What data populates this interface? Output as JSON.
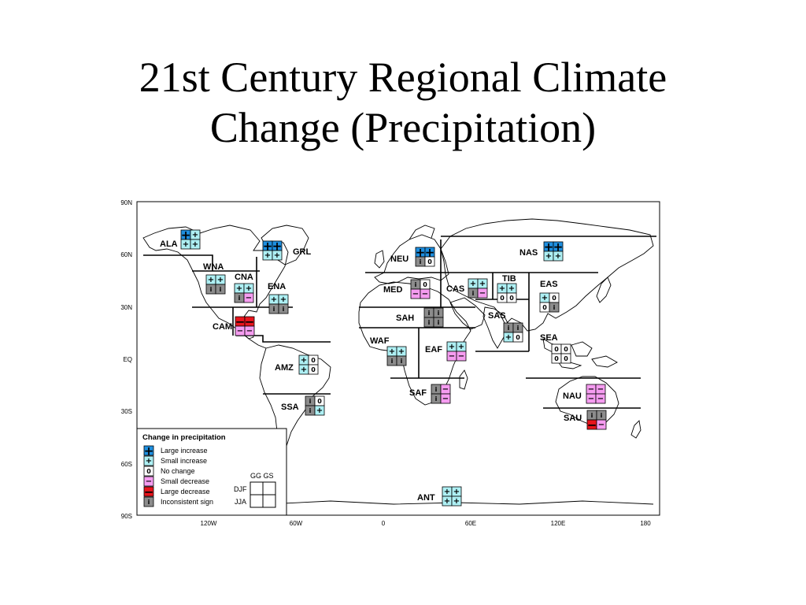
{
  "title": {
    "line1": "21st Century Regional Climate",
    "line2": "Change (Precipitation)"
  },
  "axes": {
    "lat": [
      "90N",
      "60N",
      "30N",
      "EQ",
      "30S",
      "60S",
      "90S"
    ],
    "lon": [
      "120W",
      "60W",
      "0",
      "60E",
      "120E",
      "180"
    ]
  },
  "colors": {
    "large_increase": "#1e8fe0",
    "small_increase": "#aef0f4",
    "no_change": "#ffffff",
    "small_decrease": "#f59cf0",
    "large_decrease": "#e8141c",
    "inconsistent": "#8c8c8c"
  },
  "legend": {
    "title": "Change in precipitation",
    "items": [
      {
        "key": "large_increase",
        "symbol": "+",
        "label": "Large increase"
      },
      {
        "key": "small_increase",
        "symbol": "+",
        "label": "Small increase"
      },
      {
        "key": "no_change",
        "symbol": "0",
        "label": "No change"
      },
      {
        "key": "small_decrease",
        "symbol": "−",
        "label": "Small decrease"
      },
      {
        "key": "large_decrease",
        "symbol": "−",
        "label": "Large decrease"
      },
      {
        "key": "inconsistent",
        "symbol": "i",
        "label": "Inconsistent sign"
      }
    ],
    "grid_header": "GG GS",
    "row_labels": [
      "DJF",
      "JJA"
    ]
  },
  "regions": [
    {
      "code": "ALA",
      "cells": [
        "large_increase",
        "small_increase",
        "small_increase",
        "small_increase"
      ]
    },
    {
      "code": "GRL",
      "cells": [
        "large_increase",
        "large_increase",
        "small_increase",
        "small_increase"
      ]
    },
    {
      "code": "WNA",
      "cells": [
        "small_increase",
        "small_increase",
        "inconsistent",
        "inconsistent"
      ]
    },
    {
      "code": "CNA",
      "cells": [
        "small_increase",
        "small_increase",
        "inconsistent",
        "small_decrease"
      ]
    },
    {
      "code": "ENA",
      "cells": [
        "small_increase",
        "small_increase",
        "inconsistent",
        "inconsistent"
      ]
    },
    {
      "code": "CAM",
      "cells": [
        "large_decrease",
        "large_decrease",
        "small_decrease",
        "small_decrease"
      ]
    },
    {
      "code": "AMZ",
      "cells": [
        "small_increase",
        "no_change",
        "small_increase",
        "no_change"
      ]
    },
    {
      "code": "SSA",
      "cells": [
        "inconsistent",
        "no_change",
        "inconsistent",
        "small_increase"
      ]
    },
    {
      "code": "NEU",
      "cells": [
        "large_increase",
        "large_increase",
        "inconsistent",
        "no_change"
      ]
    },
    {
      "code": "MED",
      "cells": [
        "inconsistent",
        "no_change",
        "small_decrease",
        "small_decrease"
      ]
    },
    {
      "code": "SAH",
      "cells": [
        "inconsistent",
        "inconsistent",
        "inconsistent",
        "inconsistent"
      ]
    },
    {
      "code": "WAF",
      "cells": [
        "small_increase",
        "small_increase",
        "inconsistent",
        "inconsistent"
      ]
    },
    {
      "code": "EAF",
      "cells": [
        "small_increase",
        "small_increase",
        "small_decrease",
        "small_decrease"
      ]
    },
    {
      "code": "SAF",
      "cells": [
        "inconsistent",
        "small_decrease",
        "inconsistent",
        "small_decrease"
      ]
    },
    {
      "code": "NAS",
      "cells": [
        "large_increase",
        "large_increase",
        "small_increase",
        "small_increase"
      ]
    },
    {
      "code": "CAS",
      "cells": [
        "small_increase",
        "small_increase",
        "inconsistent",
        "small_decrease"
      ]
    },
    {
      "code": "TIB",
      "cells": [
        "small_increase",
        "small_increase",
        "no_change",
        "no_change"
      ]
    },
    {
      "code": "EAS",
      "cells": [
        "small_increase",
        "no_change",
        "no_change",
        "inconsistent"
      ]
    },
    {
      "code": "SAS",
      "cells": [
        "inconsistent",
        "inconsistent",
        "small_increase",
        "no_change"
      ]
    },
    {
      "code": "SEA",
      "cells": [
        "no_change",
        "no_change",
        "no_change",
        "no_change"
      ]
    },
    {
      "code": "NAU",
      "cells": [
        "small_decrease",
        "small_decrease",
        "small_decrease",
        "small_decrease"
      ]
    },
    {
      "code": "SAU",
      "cells": [
        "inconsistent",
        "inconsistent",
        "large_decrease",
        "small_decrease"
      ]
    },
    {
      "code": "ANT",
      "cells": [
        "small_increase",
        "small_increase",
        "small_increase",
        "small_increase"
      ]
    }
  ]
}
